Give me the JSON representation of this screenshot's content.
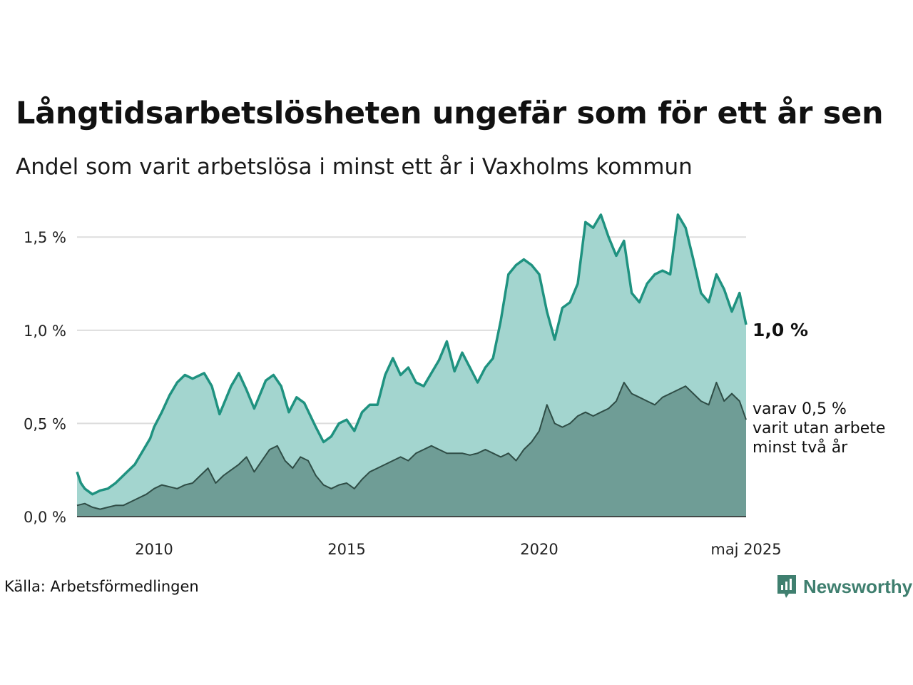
{
  "colors": {
    "total_line": "#1f9280",
    "total_fill": "#a3d5cf",
    "long_line": "#2f4d46",
    "long_fill": "#6f9d96",
    "grid": "#dddddd",
    "brand": "#3f7f6f"
  },
  "source": "Källa: Arbetsförmedlingen",
  "brand": {
    "name": "Newsworthy",
    "icon": "newsworthy-logo-icon"
  },
  "chart_data": {
    "type": "area",
    "title": "Långtidsarbetslösheten ungefär som för ett år sen",
    "subtitle": "Andel som varit arbetslösa i minst ett år i Vaxholms kommun",
    "x_ticks": [
      "2010",
      "2015",
      "2020",
      "maj 2025"
    ],
    "y_ticks": [
      "0,0 %",
      "0,5 %",
      "1,0 %",
      "1,5 %"
    ],
    "ylim": [
      0,
      1.7
    ],
    "xlim": [
      2008.0,
      2025.37
    ],
    "grid": true,
    "label_total": "1,0 %",
    "label_long": [
      "varav 0,5 %",
      "varit utan arbete",
      "minst två år"
    ],
    "series": [
      {
        "key": "total",
        "x": [
          2008.0,
          2008.1,
          2008.2,
          2008.4,
          2008.6,
          2008.8,
          2009.0,
          2009.2,
          2009.3,
          2009.5,
          2009.7,
          2009.9,
          2010.0,
          2010.2,
          2010.4,
          2010.6,
          2010.8,
          2011.0,
          2011.3,
          2011.5,
          2011.7,
          2012.0,
          2012.2,
          2012.4,
          2012.6,
          2012.8,
          2012.9,
          2013.1,
          2013.3,
          2013.5,
          2013.7,
          2013.9,
          2014.2,
          2014.4,
          2014.6,
          2014.8,
          2015.0,
          2015.2,
          2015.4,
          2015.6,
          2015.8,
          2016.0,
          2016.2,
          2016.4,
          2016.6,
          2016.8,
          2017.0,
          2017.2,
          2017.4,
          2017.6,
          2017.8,
          2018.0,
          2018.2,
          2018.4,
          2018.6,
          2018.8,
          2019.0,
          2019.2,
          2019.4,
          2019.6,
          2019.8,
          2020.0,
          2020.2,
          2020.4,
          2020.6,
          2020.8,
          2021.0,
          2021.2,
          2021.4,
          2021.6,
          2021.8,
          2022.0,
          2022.2,
          2022.4,
          2022.6,
          2022.8,
          2023.0,
          2023.2,
          2023.4,
          2023.6,
          2023.8,
          2024.0,
          2024.2,
          2024.4,
          2024.6,
          2024.8,
          2025.0,
          2025.2,
          2025.37
        ],
        "values": [
          0.24,
          0.18,
          0.15,
          0.12,
          0.14,
          0.15,
          0.18,
          0.22,
          0.24,
          0.28,
          0.35,
          0.42,
          0.48,
          0.56,
          0.65,
          0.72,
          0.76,
          0.74,
          0.77,
          0.7,
          0.55,
          0.7,
          0.77,
          0.68,
          0.58,
          0.68,
          0.73,
          0.76,
          0.7,
          0.56,
          0.64,
          0.61,
          0.48,
          0.4,
          0.43,
          0.5,
          0.52,
          0.46,
          0.56,
          0.6,
          0.6,
          0.76,
          0.85,
          0.76,
          0.8,
          0.72,
          0.7,
          0.77,
          0.84,
          0.94,
          0.78,
          0.88,
          0.8,
          0.72,
          0.8,
          0.85,
          1.05,
          1.3,
          1.35,
          1.38,
          1.35,
          1.3,
          1.1,
          0.95,
          1.12,
          1.15,
          1.25,
          1.58,
          1.55,
          1.62,
          1.5,
          1.4,
          1.48,
          1.2,
          1.15,
          1.25,
          1.3,
          1.32,
          1.3,
          1.62,
          1.55,
          1.38,
          1.2,
          1.15,
          1.3,
          1.22,
          1.1,
          1.2,
          1.03
        ]
      },
      {
        "key": "long",
        "x": [
          2008.0,
          2008.2,
          2008.4,
          2008.6,
          2008.8,
          2009.0,
          2009.2,
          2009.4,
          2009.6,
          2009.8,
          2010.0,
          2010.2,
          2010.4,
          2010.6,
          2010.8,
          2011.0,
          2011.2,
          2011.4,
          2011.6,
          2011.8,
          2012.0,
          2012.2,
          2012.4,
          2012.6,
          2012.8,
          2013.0,
          2013.2,
          2013.4,
          2013.6,
          2013.8,
          2014.0,
          2014.2,
          2014.4,
          2014.6,
          2014.8,
          2015.0,
          2015.2,
          2015.4,
          2015.6,
          2015.8,
          2016.0,
          2016.2,
          2016.4,
          2016.6,
          2016.8,
          2017.0,
          2017.2,
          2017.4,
          2017.6,
          2017.8,
          2018.0,
          2018.2,
          2018.4,
          2018.6,
          2018.8,
          2019.0,
          2019.2,
          2019.4,
          2019.6,
          2019.8,
          2020.0,
          2020.2,
          2020.4,
          2020.6,
          2020.8,
          2021.0,
          2021.2,
          2021.4,
          2021.6,
          2021.8,
          2022.0,
          2022.2,
          2022.4,
          2022.6,
          2022.8,
          2023.0,
          2023.2,
          2023.4,
          2023.6,
          2023.8,
          2024.0,
          2024.2,
          2024.4,
          2024.6,
          2024.8,
          2025.0,
          2025.2,
          2025.37
        ],
        "values": [
          0.06,
          0.07,
          0.05,
          0.04,
          0.05,
          0.06,
          0.06,
          0.08,
          0.1,
          0.12,
          0.15,
          0.17,
          0.16,
          0.15,
          0.17,
          0.18,
          0.22,
          0.26,
          0.18,
          0.22,
          0.25,
          0.28,
          0.32,
          0.24,
          0.3,
          0.36,
          0.38,
          0.3,
          0.26,
          0.32,
          0.3,
          0.22,
          0.17,
          0.15,
          0.17,
          0.18,
          0.15,
          0.2,
          0.24,
          0.26,
          0.28,
          0.3,
          0.32,
          0.3,
          0.34,
          0.36,
          0.38,
          0.36,
          0.34,
          0.34,
          0.34,
          0.33,
          0.34,
          0.36,
          0.34,
          0.32,
          0.34,
          0.3,
          0.36,
          0.4,
          0.46,
          0.6,
          0.5,
          0.48,
          0.5,
          0.54,
          0.56,
          0.54,
          0.56,
          0.58,
          0.62,
          0.72,
          0.66,
          0.64,
          0.62,
          0.6,
          0.64,
          0.66,
          0.68,
          0.7,
          0.66,
          0.62,
          0.6,
          0.72,
          0.62,
          0.66,
          0.62,
          0.52
        ]
      }
    ]
  }
}
